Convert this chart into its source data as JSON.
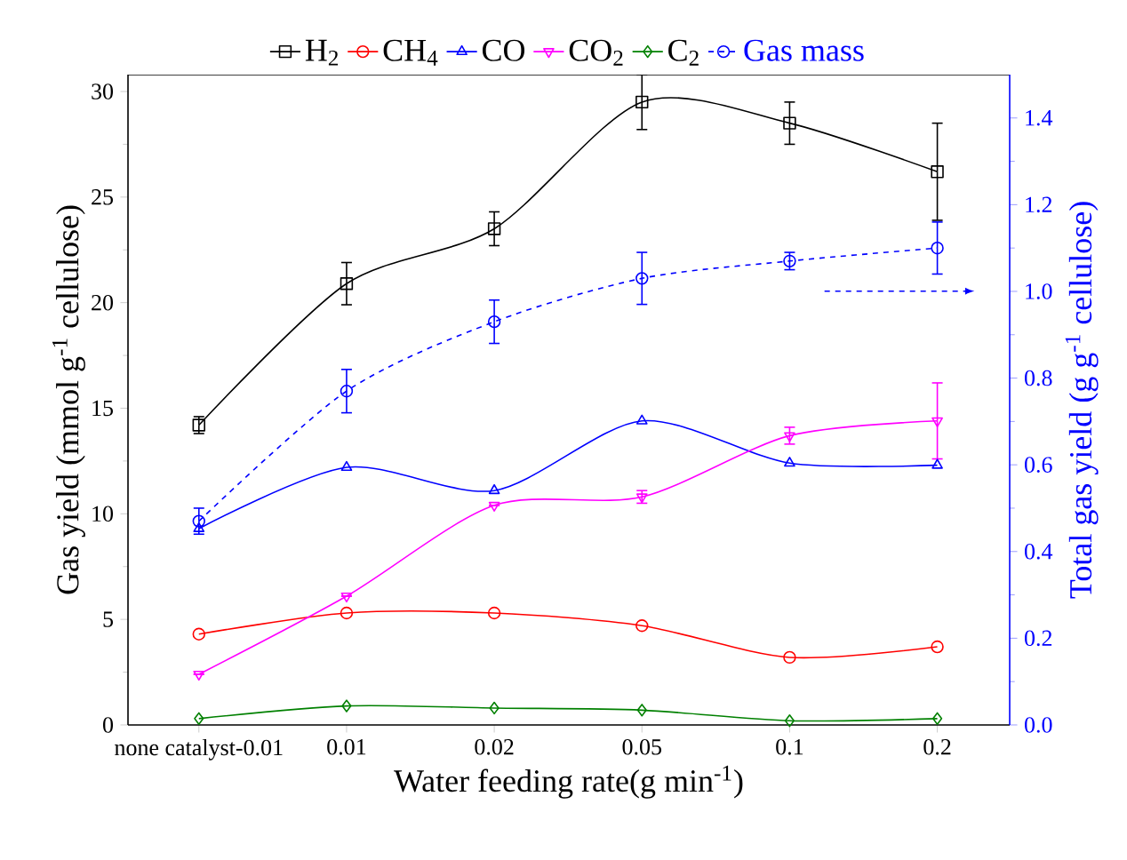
{
  "chart_data": {
    "type": "line",
    "xlabel": "Water feeding rate(g min$^{-1}$)",
    "ylabel": "Gas yield (mmol g$^{-1}$ cellulose)",
    "y2label": "Total gas yield (g g$^{-1}$ cellulose)",
    "categories": [
      "none catalyst-0.01",
      "0.01",
      "0.02",
      "0.05",
      "0.1",
      "0.2"
    ],
    "ylim": [
      0,
      30.8
    ],
    "yticks": [
      0,
      5,
      10,
      15,
      20,
      25,
      30
    ],
    "y2lim": [
      0,
      1.5
    ],
    "y2ticks": [
      {
        "value": 0,
        "label": "0.0"
      },
      {
        "value": 0.2,
        "label": "0.2"
      },
      {
        "value": 0.4,
        "label": "0.4"
      },
      {
        "value": 0.6,
        "label": "0.6"
      },
      {
        "value": 0.8,
        "label": "0.8"
      },
      {
        "value": 1.0,
        "label": "1.0"
      },
      {
        "value": 1.2,
        "label": "1.2"
      },
      {
        "value": 1.4,
        "label": "1.4"
      }
    ],
    "legend": "top",
    "series": [
      {
        "name": "H$_{2}$",
        "color": "#000000",
        "marker": "square",
        "line_style": "solid",
        "values": [
          14.2,
          20.9,
          23.5,
          29.5,
          28.5,
          26.2
        ],
        "errors": [
          0.4,
          1.0,
          0.8,
          1.3,
          1.0,
          2.3
        ]
      },
      {
        "name": "CH$_{4}$",
        "color": "#ff0000",
        "marker": "circle",
        "line_style": "solid",
        "values": [
          4.3,
          5.3,
          5.3,
          4.7,
          3.2,
          3.7
        ]
      },
      {
        "name": "CO",
        "color": "#0000ff",
        "marker": "triangle",
        "line_style": "solid",
        "values": [
          9.3,
          12.2,
          11.1,
          14.4,
          12.4,
          12.3
        ]
      },
      {
        "name": "CO$_{2}$",
        "color": "#ff00ff",
        "marker": "triangle-down",
        "line_style": "solid",
        "values": [
          2.4,
          6.1,
          10.4,
          10.8,
          13.7,
          14.4
        ],
        "errors": [
          null,
          null,
          null,
          0.3,
          0.4,
          1.8
        ]
      },
      {
        "name": "C$_{2}$",
        "color": "#008000",
        "marker": "diamond",
        "line_style": "solid",
        "values": [
          0.3,
          0.9,
          0.8,
          0.7,
          0.2,
          0.3
        ]
      },
      {
        "name": "Gas mass",
        "color": "#0000ff",
        "marker": "circle",
        "line_style": "dashed",
        "axis": "y2",
        "values": [
          0.47,
          0.77,
          0.93,
          1.03,
          1.07,
          1.1
        ],
        "errors": [
          0.03,
          0.05,
          0.05,
          0.06,
          0.02,
          0.06
        ]
      }
    ]
  }
}
